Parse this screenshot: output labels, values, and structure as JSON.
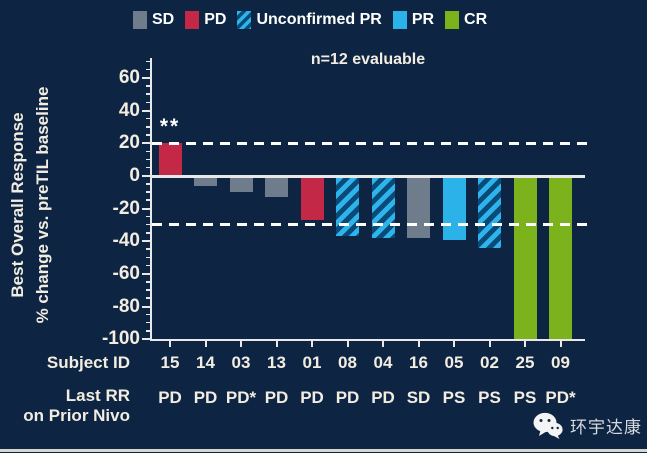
{
  "colors": {
    "background": "#0d2543",
    "text": "#f2ece1",
    "axis": "#e8e8e8",
    "reference_line": "#ffffff",
    "sd": "#6e7c8b",
    "pd": "#c42847",
    "pr": "#2ab2e9",
    "cr": "#7cb31c",
    "upr_stripe_light": "#2eb3ea",
    "upr_stripe_dark": "#0a4a78"
  },
  "legend": {
    "items": [
      {
        "label": "SD",
        "type": "sd"
      },
      {
        "label": "PD",
        "type": "pd"
      },
      {
        "label": "Unconfirmed PR",
        "type": "upr"
      },
      {
        "label": "PR",
        "type": "pr"
      },
      {
        "label": "CR",
        "type": "cr"
      }
    ]
  },
  "chart_data": {
    "type": "bar",
    "subtype": "waterfall",
    "annotation": "n=12 evaluable",
    "ylabel_line1": "Best Overall Response",
    "ylabel_line2": "% change vs. preTIL baseline",
    "ylim": [
      -100,
      60
    ],
    "y_tick_step": 20,
    "y_minor_tick_step": 5,
    "y_ticks": [
      60,
      40,
      20,
      0,
      -20,
      -40,
      -60,
      -80,
      -100
    ],
    "reference_lines": [
      20,
      -30
    ],
    "grid": "off",
    "legend_position": "top",
    "x_axis_row1_label": "Subject ID",
    "x_axis_row2_label_line1": "Last RR",
    "x_axis_row2_label_line2": "on Prior Nivo",
    "categories": [
      "15",
      "14",
      "03",
      "13",
      "01",
      "08",
      "04",
      "16",
      "05",
      "02",
      "25",
      "09"
    ],
    "values": [
      20,
      -6,
      -10,
      -13,
      -27,
      -37,
      -38,
      -38,
      -39,
      -44,
      -100,
      -100
    ],
    "bars": [
      {
        "subject": "15",
        "value": 20,
        "response": "pd",
        "last_rr_prior_nivo": "PD",
        "annotation": "**"
      },
      {
        "subject": "14",
        "value": -6,
        "response": "sd",
        "last_rr_prior_nivo": "PD"
      },
      {
        "subject": "03",
        "value": -10,
        "response": "sd",
        "last_rr_prior_nivo": "PD*"
      },
      {
        "subject": "13",
        "value": -13,
        "response": "sd",
        "last_rr_prior_nivo": "PD"
      },
      {
        "subject": "01",
        "value": -27,
        "response": "pd",
        "last_rr_prior_nivo": "PD"
      },
      {
        "subject": "08",
        "value": -37,
        "response": "upr",
        "last_rr_prior_nivo": "PD"
      },
      {
        "subject": "04",
        "value": -38,
        "response": "upr",
        "last_rr_prior_nivo": "PD"
      },
      {
        "subject": "16",
        "value": -38,
        "response": "sd",
        "last_rr_prior_nivo": "SD"
      },
      {
        "subject": "05",
        "value": -39,
        "response": "pr",
        "last_rr_prior_nivo": "PS"
      },
      {
        "subject": "02",
        "value": -44,
        "response": "upr",
        "last_rr_prior_nivo": "PS"
      },
      {
        "subject": "25",
        "value": -100,
        "response": "cr",
        "last_rr_prior_nivo": "PS"
      },
      {
        "subject": "09",
        "value": -100,
        "response": "cr",
        "last_rr_prior_nivo": "PD*"
      }
    ]
  },
  "watermark": {
    "icon": "wechat-icon",
    "text": "环宇达康"
  }
}
